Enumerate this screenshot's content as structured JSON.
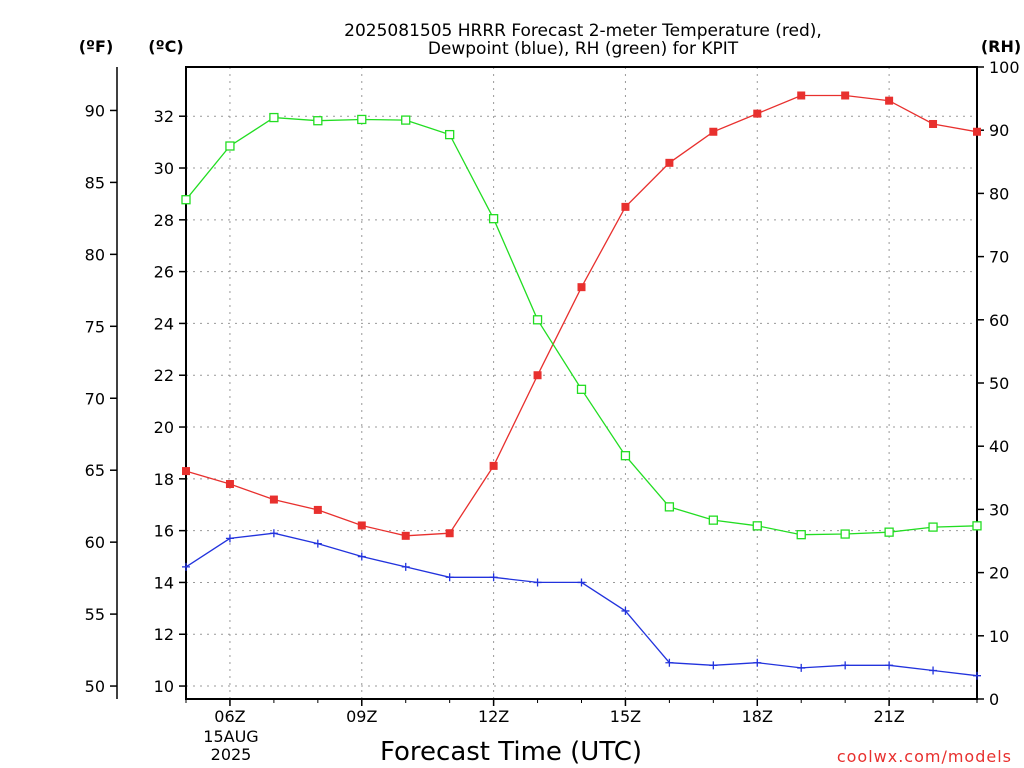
{
  "title_line1": "2025081505 HRRR Forecast 2-meter Temperature (red),",
  "title_line2": "Dewpoint (blue), RH (green) for KPIT",
  "unit_f": "(ºF)",
  "unit_c": "(ºC)",
  "unit_rh": "(RH)",
  "credit": "coolwx.com/models",
  "colors": {
    "temperature": "#e8302e",
    "dewpoint": "#2233dd",
    "rh": "#22dd22",
    "grid": "#999999"
  },
  "chart_data": {
    "type": "line",
    "xlabel": "Forecast Time (UTC)",
    "x": [
      "05Z",
      "06Z",
      "07Z",
      "08Z",
      "09Z",
      "10Z",
      "11Z",
      "12Z",
      "13Z",
      "14Z",
      "15Z",
      "16Z",
      "17Z",
      "18Z",
      "19Z",
      "20Z",
      "21Z",
      "22Z",
      "23Z"
    ],
    "x_ticks": [
      "06Z",
      "09Z",
      "12Z",
      "15Z",
      "18Z",
      "21Z"
    ],
    "x_date_label": [
      "15AUG",
      "2025"
    ],
    "grid": true,
    "y_left_c": {
      "ylim": [
        9.5,
        33.9
      ],
      "ticks": [
        10,
        12,
        14,
        16,
        18,
        20,
        22,
        24,
        26,
        28,
        30,
        32
      ]
    },
    "y_left_f": {
      "ticks": [
        50,
        55,
        60,
        65,
        70,
        75,
        80,
        85,
        90
      ]
    },
    "y_right_rh": {
      "ylim": [
        0,
        100
      ],
      "ticks": [
        0,
        10,
        20,
        30,
        40,
        50,
        60,
        70,
        80,
        90,
        100
      ]
    },
    "series": [
      {
        "name": "Temperature (red)",
        "axis": "C",
        "marker": "filled-square",
        "values": [
          18.3,
          17.8,
          17.2,
          16.8,
          16.2,
          15.8,
          15.9,
          18.5,
          22.0,
          25.4,
          28.5,
          30.2,
          31.4,
          32.1,
          32.8,
          32.8,
          32.6,
          31.7,
          31.4
        ]
      },
      {
        "name": "Dewpoint (blue)",
        "axis": "C",
        "marker": "plus",
        "values": [
          14.6,
          15.7,
          15.9,
          15.5,
          15.0,
          14.6,
          14.2,
          14.2,
          14.0,
          14.0,
          12.9,
          10.9,
          10.8,
          10.9,
          10.7,
          10.8,
          10.8,
          10.6,
          10.4
        ]
      },
      {
        "name": "RH (green)",
        "axis": "RH",
        "marker": "open-square",
        "values": [
          79,
          87.5,
          92,
          91.5,
          91.7,
          91.6,
          89.3,
          76,
          60,
          49,
          38.5,
          30.4,
          28.3,
          27.4,
          26.0,
          26.1,
          26.4,
          27.2,
          27.4
        ]
      }
    ]
  }
}
